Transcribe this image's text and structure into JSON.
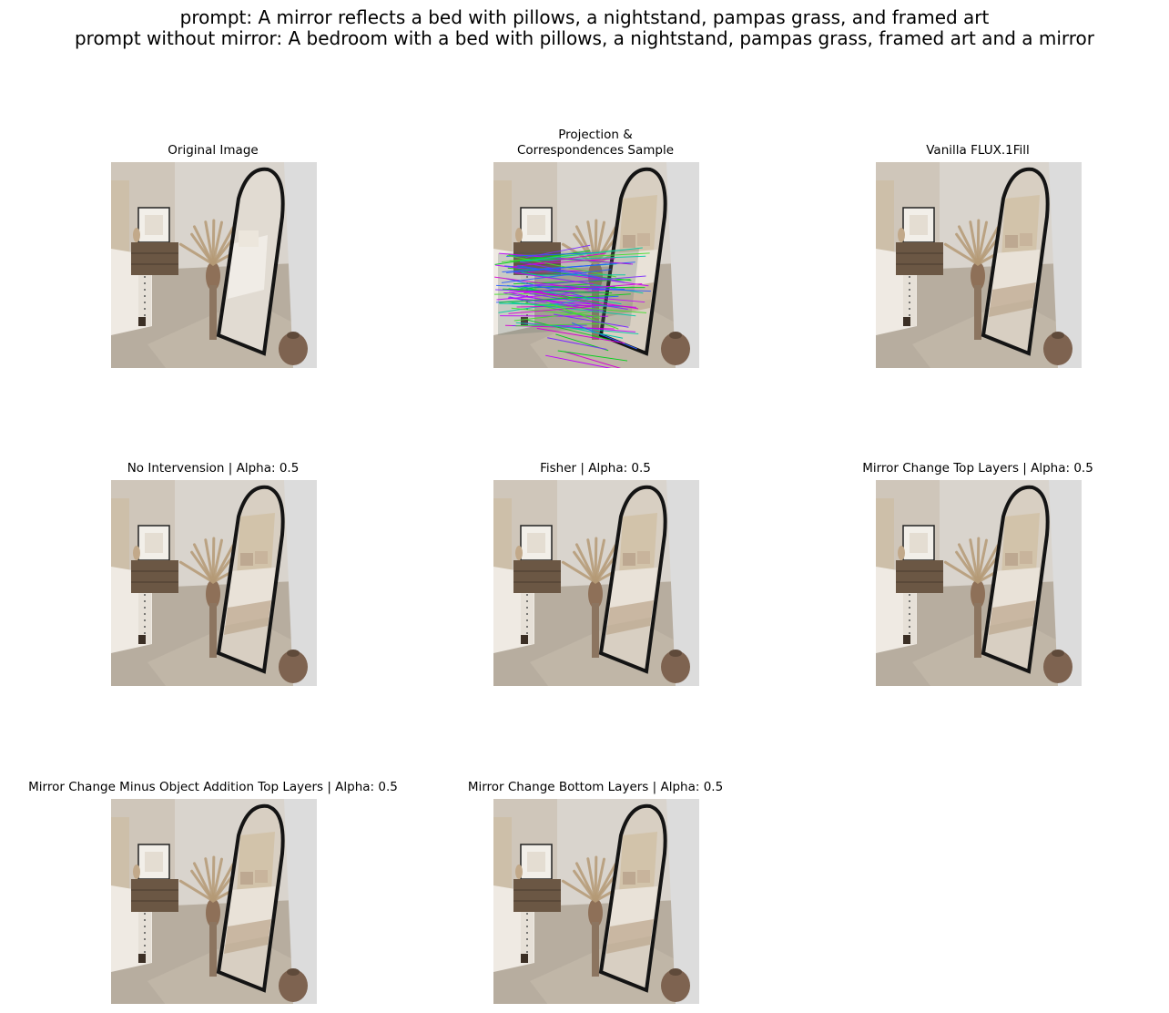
{
  "figure": {
    "title_line1": "prompt: A mirror reflects a bed with pillows, a nightstand, pampas grass, and framed art",
    "title_line2": "prompt without mirror: A bedroom with a bed with pillows, a nightstand, pampas grass, framed art and a mirror"
  },
  "panels": [
    {
      "title": "Original Image",
      "variant": "original"
    },
    {
      "title_line1": "Projection &",
      "title_line2": "Correspondences Sample",
      "variant": "projection"
    },
    {
      "title": "Vanilla FLUX.1Fill",
      "variant": "vanilla"
    },
    {
      "title": "No Intervension | Alpha: 0.5",
      "variant": "generated"
    },
    {
      "title": "Fisher | Alpha: 0.5",
      "variant": "generated"
    },
    {
      "title": "Mirror Change Top Layers | Alpha: 0.5",
      "variant": "generated"
    },
    {
      "title": "Mirror Change Minus Object Addition Top Layers | Alpha: 0.5",
      "variant": "generated"
    },
    {
      "title": "Mirror Change Bottom Layers | Alpha: 0.5",
      "variant": "generated"
    }
  ],
  "colors": {
    "wall": "#d9d4cd",
    "floor": "#b7ad9f",
    "bed": "#efeae3",
    "frame": "#141414",
    "nightstand": "#6b5744",
    "pampas": "#b59a76",
    "right_wall": "#dcdcdc"
  }
}
